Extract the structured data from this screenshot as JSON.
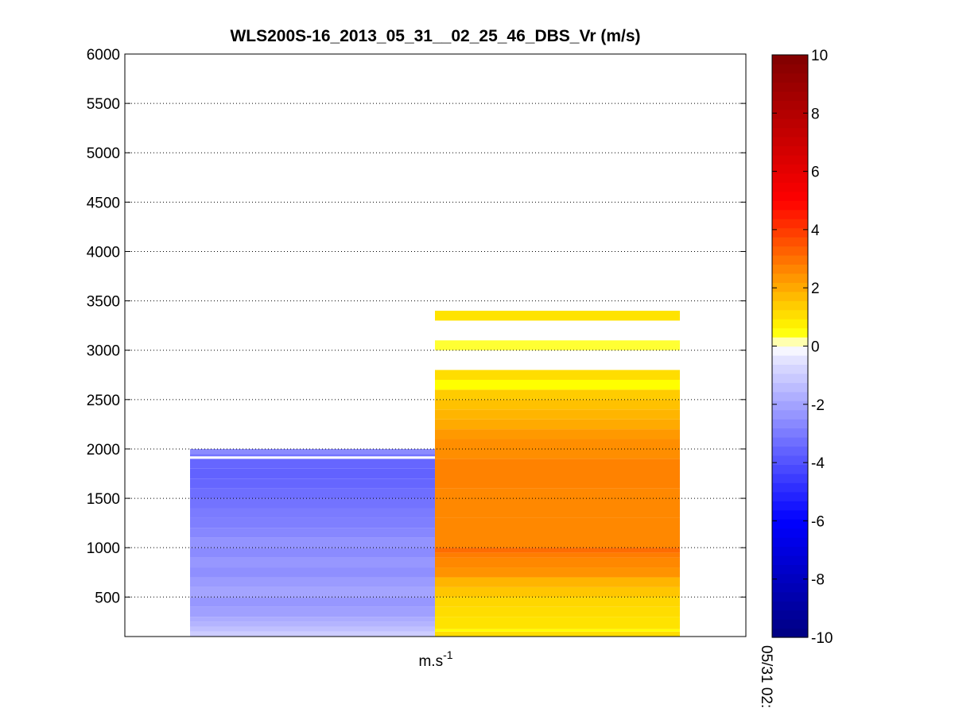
{
  "chart_data": {
    "type": "heatmap",
    "title": "WLS200S-16_2013_05_31__02_25_46_DBS_Vr (m/s)",
    "xlabel_base": "m.s",
    "xlabel_exponent": "-1",
    "xlabel": "m.s-1",
    "time_label": "05/31 02:",
    "ylim": [
      100,
      6000
    ],
    "yticks": [
      500,
      1000,
      1500,
      2000,
      2500,
      3000,
      3500,
      4000,
      4500,
      5000,
      5500,
      6000
    ],
    "y_grid": "dotted",
    "colorbar": {
      "range": [
        -10,
        10
      ],
      "ticks": [
        -10,
        -8,
        -6,
        -4,
        -2,
        0,
        2,
        4,
        6,
        8,
        10
      ]
    },
    "columns": [
      {
        "segments": [
          {
            "y0": 100,
            "y1": 150,
            "v": -1.0
          },
          {
            "y0": 150,
            "y1": 200,
            "v": -1.3
          },
          {
            "y0": 200,
            "y1": 250,
            "v": -1.6
          },
          {
            "y0": 250,
            "y1": 300,
            "v": -1.8
          },
          {
            "y0": 300,
            "y1": 400,
            "v": -2.1
          },
          {
            "y0": 400,
            "y1": 500,
            "v": -2.3
          },
          {
            "y0": 500,
            "y1": 600,
            "v": -2.0
          },
          {
            "y0": 600,
            "y1": 700,
            "v": -2.2
          },
          {
            "y0": 700,
            "y1": 800,
            "v": -2.5
          },
          {
            "y0": 800,
            "y1": 900,
            "v": -2.3
          },
          {
            "y0": 900,
            "y1": 1000,
            "v": -2.6
          },
          {
            "y0": 1000,
            "y1": 1100,
            "v": -2.4
          },
          {
            "y0": 1100,
            "y1": 1200,
            "v": -2.7
          },
          {
            "y0": 1200,
            "y1": 1300,
            "v": -2.9
          },
          {
            "y0": 1300,
            "y1": 1400,
            "v": -3.0
          },
          {
            "y0": 1400,
            "y1": 1500,
            "v": -3.2
          },
          {
            "y0": 1500,
            "y1": 1600,
            "v": -3.3
          },
          {
            "y0": 1600,
            "y1": 1700,
            "v": -3.5
          },
          {
            "y0": 1700,
            "y1": 1800,
            "v": -3.6
          },
          {
            "y0": 1800,
            "y1": 1900,
            "v": -3.5
          },
          {
            "y0": 1925,
            "y1": 1950,
            "v": -3.2
          },
          {
            "y0": 1950,
            "y1": 2000,
            "v": -2.6
          }
        ]
      },
      {
        "segments": [
          {
            "y0": 100,
            "y1": 150,
            "v": 1.1
          },
          {
            "y0": 150,
            "y1": 175,
            "v": 0.5
          },
          {
            "y0": 175,
            "y1": 300,
            "v": 1.0
          },
          {
            "y0": 300,
            "y1": 400,
            "v": 1.1
          },
          {
            "y0": 400,
            "y1": 500,
            "v": 1.2
          },
          {
            "y0": 500,
            "y1": 600,
            "v": 1.5
          },
          {
            "y0": 600,
            "y1": 700,
            "v": 1.8
          },
          {
            "y0": 700,
            "y1": 800,
            "v": 2.4
          },
          {
            "y0": 800,
            "y1": 900,
            "v": 2.6
          },
          {
            "y0": 900,
            "y1": 950,
            "v": 2.8
          },
          {
            "y0": 950,
            "y1": 1000,
            "v": 3.1
          },
          {
            "y0": 1000,
            "y1": 1300,
            "v": 2.6
          },
          {
            "y0": 1300,
            "y1": 1600,
            "v": 2.6
          },
          {
            "y0": 1600,
            "y1": 1900,
            "v": 2.7
          },
          {
            "y0": 1900,
            "y1": 2100,
            "v": 2.5
          },
          {
            "y0": 2100,
            "y1": 2200,
            "v": 2.3
          },
          {
            "y0": 2200,
            "y1": 2300,
            "v": 2.0
          },
          {
            "y0": 2300,
            "y1": 2400,
            "v": 1.8
          },
          {
            "y0": 2400,
            "y1": 2500,
            "v": 1.6
          },
          {
            "y0": 2500,
            "y1": 2600,
            "v": 1.4
          },
          {
            "y0": 2600,
            "y1": 2700,
            "v": 0.5
          },
          {
            "y0": 2700,
            "y1": 2800,
            "v": 1.1
          },
          {
            "y0": 3000,
            "y1": 3100,
            "v": 0.4
          },
          {
            "y0": 3300,
            "y1": 3400,
            "v": 1.0
          }
        ]
      }
    ]
  }
}
